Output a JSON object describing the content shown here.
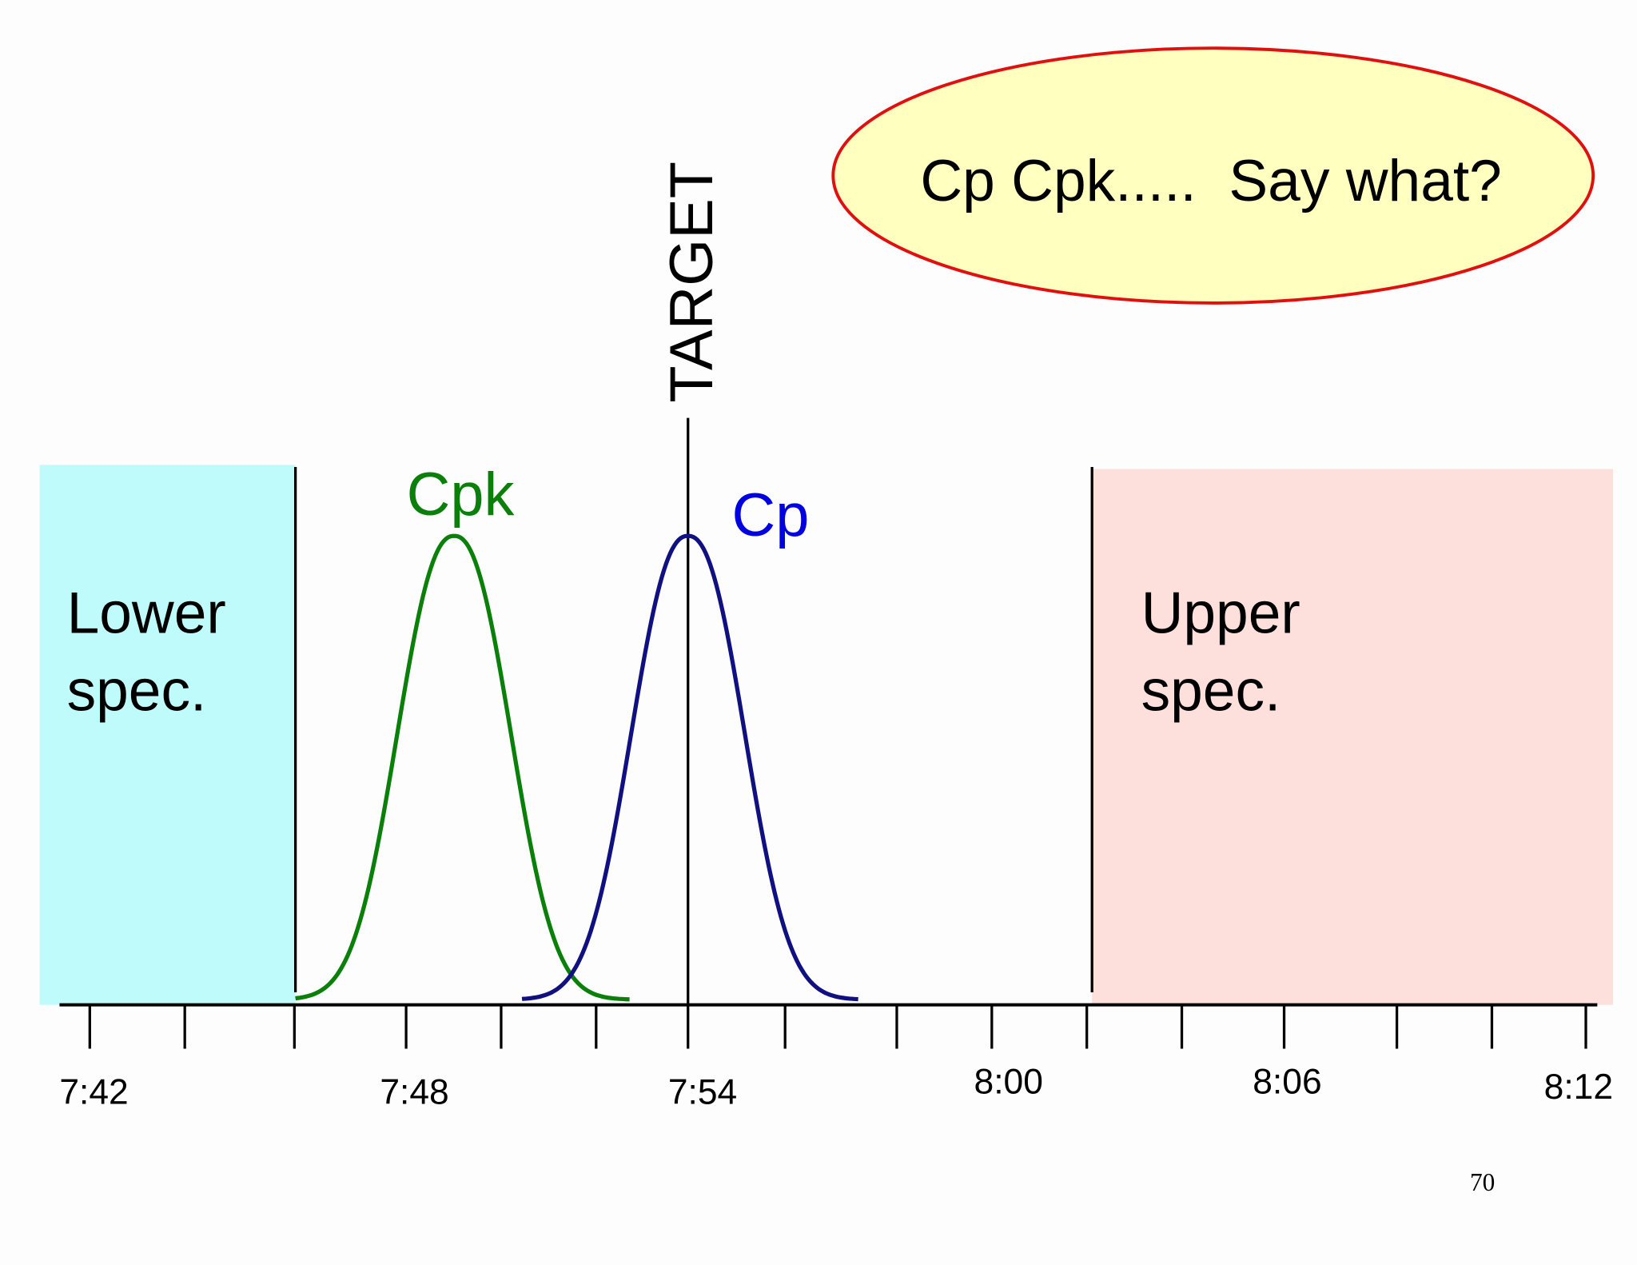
{
  "callout": "Cp Cpk.....  Say what?",
  "target_label": "TARGET",
  "curves": {
    "cpk": "Cpk",
    "cp": "Cp"
  },
  "lower_spec": {
    "lines": [
      "Lower",
      "spec."
    ]
  },
  "upper_spec": {
    "lines": [
      "Upper",
      "spec."
    ]
  },
  "axis_labels": [
    "7:42",
    "7:48",
    "7:54",
    "8:00",
    "8:06",
    "8:12"
  ],
  "page_number": "70"
}
